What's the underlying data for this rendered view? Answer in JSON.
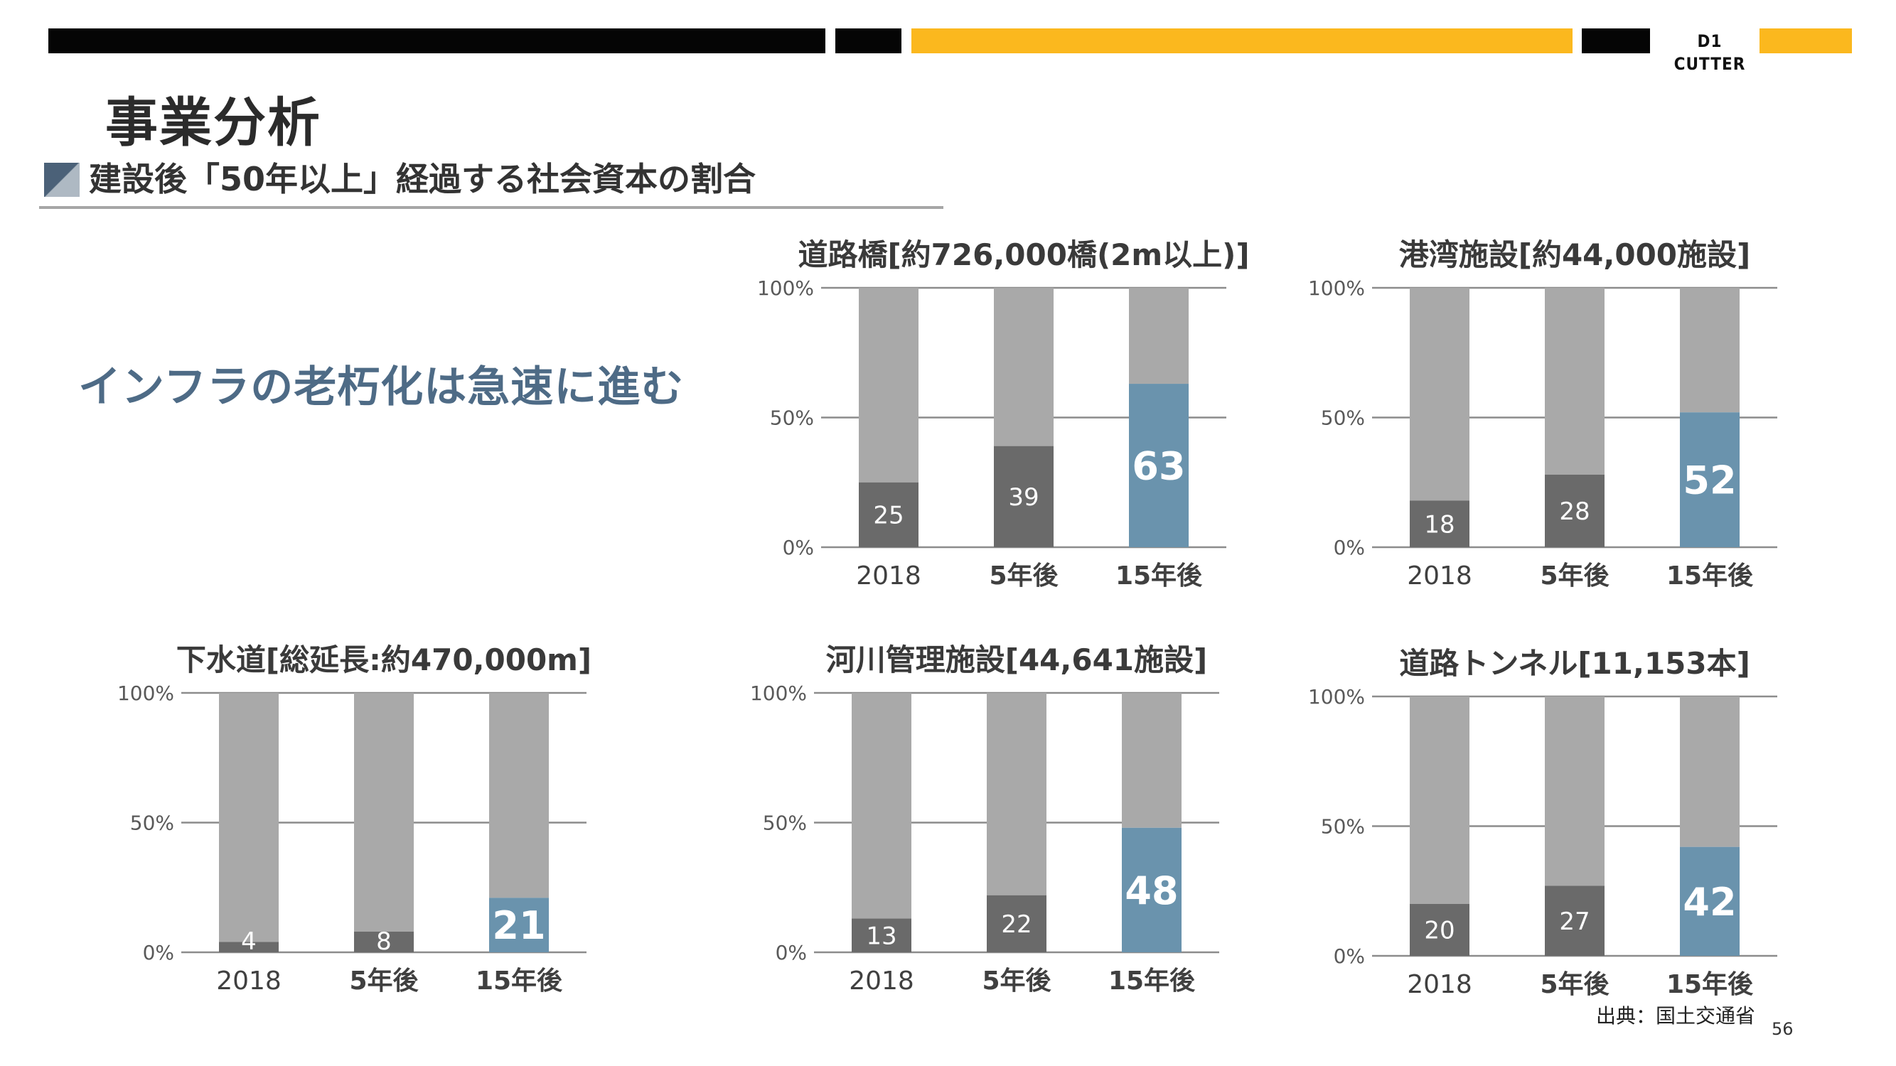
{
  "header": {
    "brand": "D1 CUTTER",
    "colors": {
      "dark": "#050505",
      "accent": "#fbb81e"
    }
  },
  "page_title": "事業分析",
  "subtitle": "建設後「50年以上」経過する社会資本の割合",
  "headline": "インフラの老朽化は急速に進む",
  "source": "出典：国土交通省",
  "page_number": "56",
  "colors": {
    "past": "#6a6a6a",
    "future": "#6a93ad",
    "rest": "#a9a9a9",
    "grid": "#8c8c8c"
  },
  "chart_data": [
    {
      "type": "bar",
      "stacked": true,
      "title": "道路橋[約726,000橋(2m以上)]",
      "categories": [
        "2018",
        "5年後",
        "15年後"
      ],
      "values": [
        25,
        39,
        63
      ],
      "yticks": [
        "100%",
        "50%",
        "0%"
      ],
      "ylim": [
        0,
        100
      ],
      "grid": true
    },
    {
      "type": "bar",
      "stacked": true,
      "title": "港湾施設[約44,000施設]",
      "categories": [
        "2018",
        "5年後",
        "15年後"
      ],
      "values": [
        18,
        28,
        52
      ],
      "yticks": [
        "100%",
        "50%",
        "0%"
      ],
      "ylim": [
        0,
        100
      ],
      "grid": true
    },
    {
      "type": "bar",
      "stacked": true,
      "title": "下水道[総延長:約470,000m]",
      "categories": [
        "2018",
        "5年後",
        "15年後"
      ],
      "values": [
        4,
        8,
        21
      ],
      "yticks": [
        "100%",
        "50%",
        "0%"
      ],
      "ylim": [
        0,
        100
      ],
      "grid": true
    },
    {
      "type": "bar",
      "stacked": true,
      "title": "河川管理施設[44,641施設]",
      "categories": [
        "2018",
        "5年後",
        "15年後"
      ],
      "values": [
        13,
        22,
        48
      ],
      "yticks": [
        "100%",
        "50%",
        "0%"
      ],
      "ylim": [
        0,
        100
      ],
      "grid": true
    },
    {
      "type": "bar",
      "stacked": true,
      "title": "道路トンネル[11,153本]",
      "categories": [
        "2018",
        "5年後",
        "15年後"
      ],
      "values": [
        20,
        27,
        42
      ],
      "yticks": [
        "100%",
        "50%",
        "0%"
      ],
      "ylim": [
        0,
        100
      ],
      "grid": true
    }
  ]
}
